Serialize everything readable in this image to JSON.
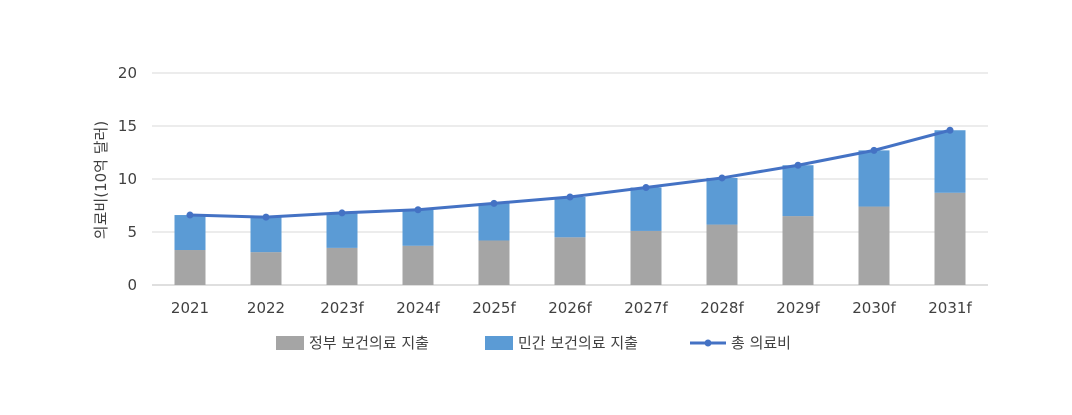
{
  "chart_data": {
    "type": "bar",
    "stacked": true,
    "title": "",
    "xlabel": "",
    "ylabel": "의료비(10억 달러)",
    "ylim": [
      0,
      20
    ],
    "yticks": [
      0,
      5,
      10,
      15,
      20
    ],
    "grid": true,
    "legend_position": "bottom",
    "categories": [
      "2021",
      "2022",
      "2023f",
      "2024f",
      "2025f",
      "2026f",
      "2027f",
      "2028f",
      "2029f",
      "2030f",
      "2031f"
    ],
    "series": [
      {
        "name": "정부 보건의료 지출",
        "kind": "bar",
        "color": "#a5a5a5",
        "values": [
          3.3,
          3.1,
          3.5,
          3.7,
          4.2,
          4.5,
          5.1,
          5.7,
          6.5,
          7.4,
          8.7
        ]
      },
      {
        "name": "민간 보건의료 지출",
        "kind": "bar",
        "color": "#5b9bd5",
        "values": [
          3.3,
          3.3,
          3.3,
          3.4,
          3.5,
          3.8,
          4.1,
          4.4,
          4.8,
          5.3,
          5.9
        ]
      },
      {
        "name": "총 의료비",
        "kind": "line",
        "color": "#4472c4",
        "values": [
          6.6,
          6.4,
          6.8,
          7.1,
          7.7,
          8.3,
          9.2,
          10.1,
          11.3,
          12.7,
          14.6
        ]
      }
    ]
  }
}
